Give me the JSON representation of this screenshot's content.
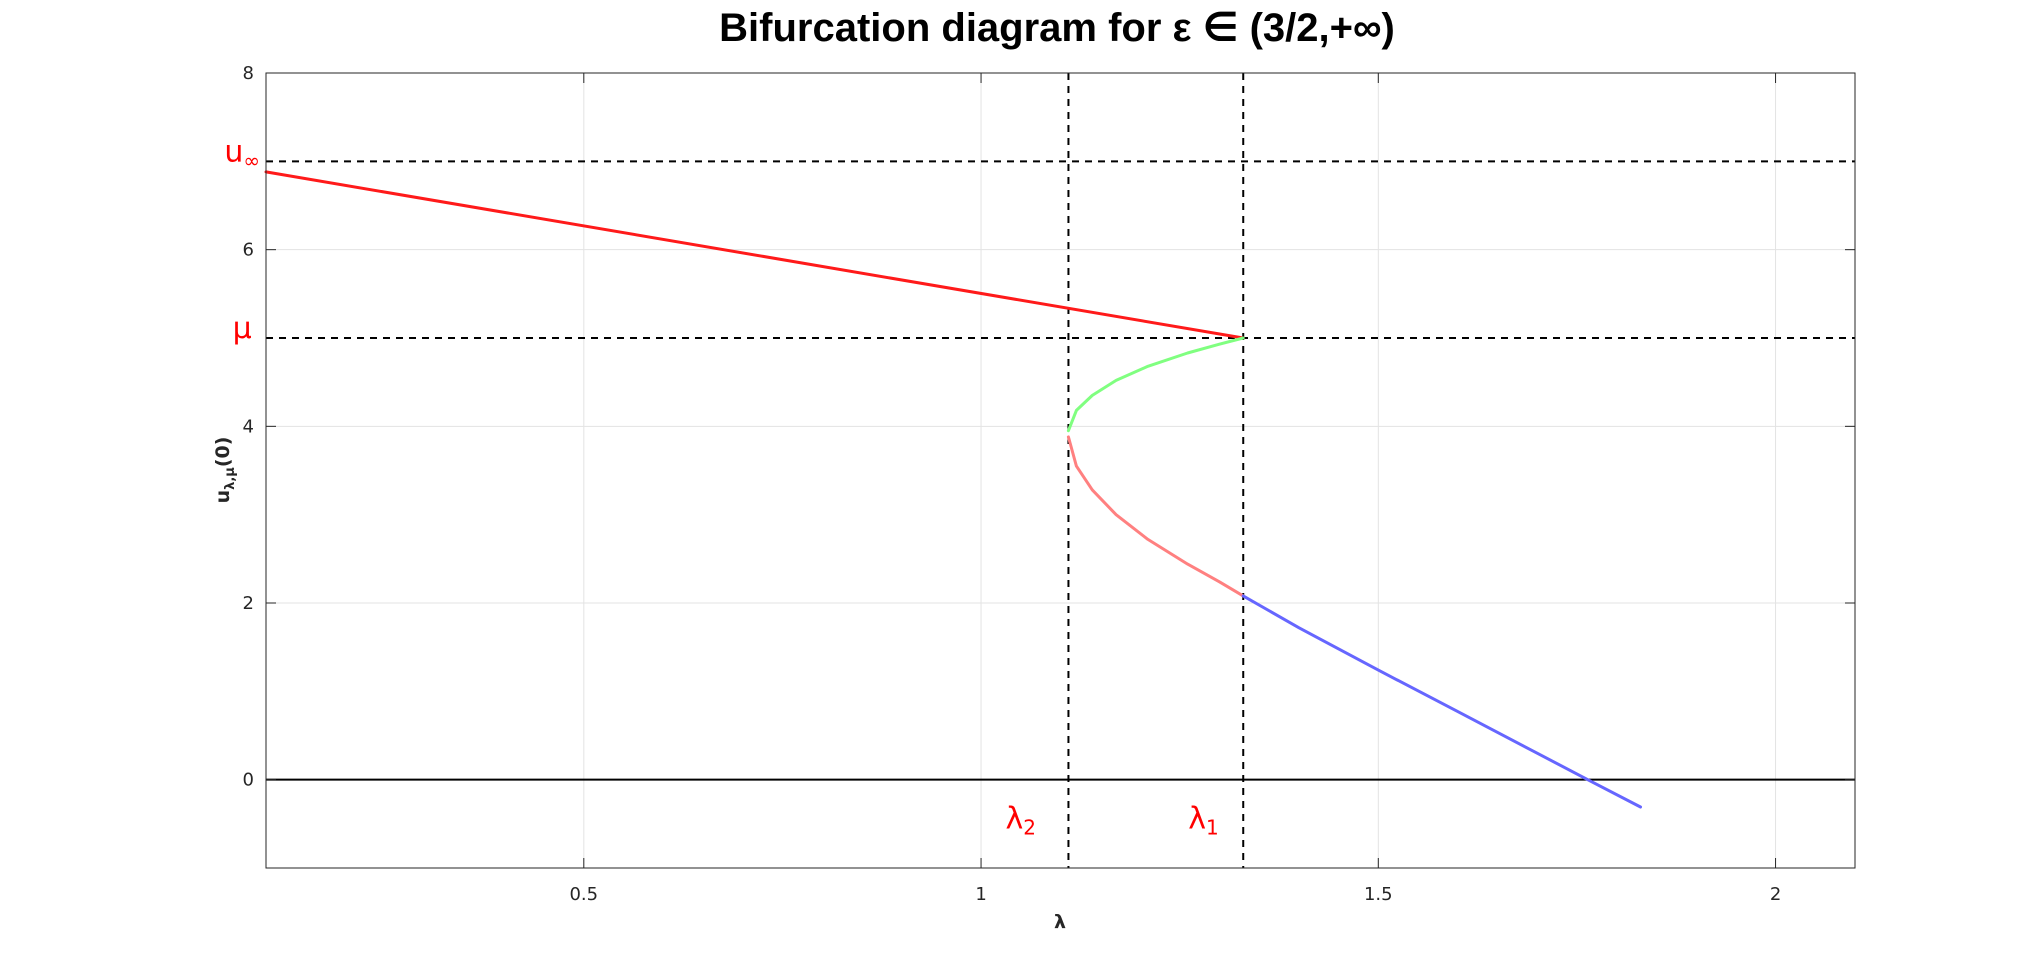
{
  "chart_data": {
    "type": "line",
    "title": "Bifurcation diagram for ε ∈ (3/2,+∞)",
    "xlabel": "λ",
    "ylabel": "u_{λ,μ}(0)",
    "ylabel_main": "u",
    "ylabel_sub": "λ,μ",
    "ylabel_tail": "(0)",
    "xlim": [
      0.1,
      2.1
    ],
    "ylim": [
      -1,
      8
    ],
    "xticks": [
      0.5,
      1,
      1.5,
      2
    ],
    "xtick_labels": [
      "0.5",
      "1",
      "1.5",
      "2"
    ],
    "yticks": [
      0,
      2,
      4,
      6,
      8
    ],
    "ytick_labels": [
      "0",
      "2",
      "4",
      "6",
      "8"
    ],
    "grid": true,
    "series": [
      {
        "color": "#ff1a1a",
        "x": [
          0.1,
          1.33
        ],
        "y": [
          6.88,
          5.0
        ]
      },
      {
        "color": "#80ff80",
        "x": [
          1.11,
          1.12,
          1.14,
          1.17,
          1.21,
          1.26,
          1.3,
          1.33
        ],
        "y": [
          3.95,
          4.18,
          4.35,
          4.52,
          4.68,
          4.83,
          4.93,
          5.0
        ]
      },
      {
        "color": "#ff8080",
        "x": [
          1.11,
          1.12,
          1.14,
          1.17,
          1.21,
          1.26,
          1.3,
          1.33
        ],
        "y": [
          3.88,
          3.55,
          3.28,
          3.0,
          2.72,
          2.44,
          2.24,
          2.08
        ]
      },
      {
        "color": "#6666ff",
        "x": [
          1.33,
          1.4,
          1.5,
          1.6,
          1.7,
          1.77,
          1.83
        ],
        "y": [
          2.08,
          1.72,
          1.24,
          0.77,
          0.3,
          -0.03,
          -0.31
        ]
      }
    ],
    "reference_lines": {
      "horizontal_dashed": [
        7.0,
        5.0
      ],
      "vertical_dashed": [
        1.11,
        1.33
      ],
      "horizontal_solid": [
        0
      ]
    },
    "annotations": [
      {
        "main": "u",
        "sub": "∞",
        "x": 0.07,
        "y": 7.0,
        "color": "#ff0000"
      },
      {
        "main": "μ",
        "sub": "",
        "x": 0.07,
        "y": 5.0,
        "color": "#ff0000"
      },
      {
        "main": "λ",
        "sub": "2",
        "x": 1.05,
        "y": -0.55,
        "color": "#ff0000"
      },
      {
        "main": "λ",
        "sub": "1",
        "x": 1.28,
        "y": -0.55,
        "color": "#ff0000"
      }
    ]
  }
}
